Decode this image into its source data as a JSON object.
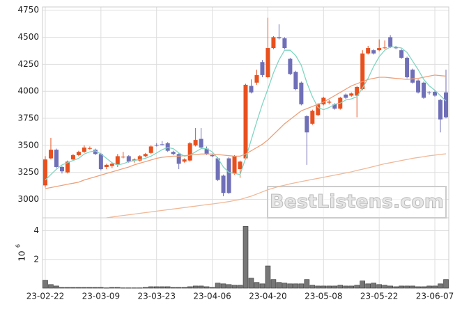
{
  "chart_data": {
    "type": "candlestick",
    "categories": [
      "23-02-22",
      null,
      null,
      null,
      null,
      null,
      null,
      null,
      null,
      null,
      "23-03-09",
      null,
      null,
      null,
      null,
      null,
      null,
      null,
      null,
      null,
      "23-03-23",
      null,
      null,
      null,
      null,
      null,
      null,
      null,
      null,
      null,
      "23-04-06",
      null,
      null,
      null,
      null,
      null,
      null,
      null,
      null,
      null,
      "23-04-20",
      null,
      null,
      null,
      null,
      null,
      null,
      null,
      null,
      null,
      "23-05-08",
      null,
      null,
      null,
      null,
      null,
      null,
      null,
      null,
      null,
      "23-05-22",
      null,
      null,
      null,
      null,
      null,
      null,
      null,
      null,
      null,
      "23-06-07",
      null,
      null
    ],
    "open": [
      3130,
      3380,
      3460,
      3300,
      3250,
      3370,
      3410,
      3440,
      3470,
      3460,
      3420,
      3300,
      3310,
      3320,
      3390,
      3400,
      3360,
      3360,
      3400,
      3430,
      3505,
      3510,
      3520,
      3440,
      3420,
      3350,
      3360,
      3500,
      3560,
      3470,
      3410,
      3380,
      3220,
      3380,
      3240,
      3280,
      3380,
      4050,
      4080,
      4270,
      4130,
      4400,
      4500,
      4490,
      4300,
      4180,
      4080,
      3770,
      3700,
      3780,
      3880,
      3895,
      3880,
      3840,
      3970,
      3960,
      3960,
      4020,
      4350,
      4380,
      4380,
      4400,
      4500,
      4405,
      4380,
      4310,
      4200,
      4100,
      4080,
      3990,
      3995,
      3920,
      3990
    ],
    "high": [
      3400,
      3570,
      3470,
      3310,
      3360,
      3420,
      3450,
      3500,
      3490,
      3470,
      3430,
      3330,
      3340,
      3420,
      3440,
      3410,
      3380,
      3410,
      3430,
      3500,
      3520,
      3540,
      3530,
      3450,
      3430,
      3380,
      3530,
      3660,
      3660,
      3490,
      3420,
      3390,
      3230,
      3390,
      3410,
      3360,
      4070,
      4110,
      4200,
      4290,
      4680,
      4510,
      4620,
      4500,
      4310,
      4190,
      4090,
      3780,
      3830,
      3890,
      3950,
      3920,
      3890,
      3950,
      3980,
      3990,
      4050,
      4380,
      4420,
      4390,
      4480,
      4470,
      4520,
      4420,
      4390,
      4320,
      4210,
      4110,
      4090,
      4000,
      4010,
      3930,
      4200
    ],
    "low": [
      3110,
      3370,
      3290,
      3240,
      3240,
      3360,
      3400,
      3430,
      3460,
      3410,
      3270,
      3280,
      3290,
      3300,
      3380,
      3340,
      3340,
      3350,
      3390,
      3420,
      3490,
      3500,
      3440,
      3410,
      3280,
      3340,
      3350,
      3490,
      3470,
      3410,
      3390,
      3170,
      3030,
      3050,
      3230,
      3200,
      3370,
      3980,
      4060,
      4130,
      4120,
      4390,
      4480,
      4390,
      4150,
      4010,
      3870,
      3320,
      3690,
      3770,
      3870,
      3880,
      3830,
      3830,
      3930,
      3950,
      3760,
      4010,
      4340,
      4340,
      4370,
      4390,
      4400,
      4390,
      4300,
      4120,
      4070,
      3980,
      3930,
      3970,
      3950,
      3620,
      3750
    ],
    "close": [
      3370,
      3460,
      3300,
      3260,
      3350,
      3410,
      3440,
      3480,
      3475,
      3420,
      3280,
      3320,
      3330,
      3400,
      3395,
      3350,
      3370,
      3400,
      3420,
      3490,
      3500,
      3505,
      3450,
      3420,
      3330,
      3370,
      3520,
      3550,
      3480,
      3420,
      3400,
      3180,
      3060,
      3060,
      3400,
      3350,
      4060,
      3990,
      4150,
      4150,
      4400,
      4500,
      4490,
      4400,
      4160,
      4020,
      3880,
      3620,
      3820,
      3880,
      3940,
      3905,
      3840,
      3940,
      3940,
      3980,
      4040,
      4350,
      4400,
      4350,
      4400,
      4405,
      4410,
      4400,
      4310,
      4130,
      4080,
      3990,
      3940,
      3985,
      3960,
      3740,
      3760
    ],
    "up_color": "#e8501e",
    "down_color": "#6f6fb8",
    "series": [
      {
        "color": "#7fd6c0",
        "values": [
          3180,
          3230,
          3280,
          3320,
          3340,
          3360,
          3380,
          3420,
          3440,
          3450,
          3420,
          3380,
          3340,
          3320,
          3330,
          3350,
          3360,
          3370,
          3380,
          3400,
          3430,
          3460,
          3480,
          3470,
          3430,
          3400,
          3410,
          3440,
          3470,
          3470,
          3440,
          3380,
          3300,
          3250,
          3240,
          3230,
          3380,
          3550,
          3720,
          3880,
          4020,
          4170,
          4290,
          4380,
          4380,
          4330,
          4240,
          4080,
          3950,
          3850,
          3830,
          3850,
          3880,
          3890,
          3920,
          3930,
          3950,
          4030,
          4120,
          4230,
          4320,
          4380,
          4410,
          4410,
          4400,
          4360,
          4280,
          4200,
          4110,
          4050,
          4010,
          3960,
          3910
        ]
      },
      {
        "color": "#eea07a",
        "values": [
          3100,
          3110,
          3120,
          3130,
          3140,
          3150,
          3160,
          3180,
          3195,
          3210,
          3225,
          3240,
          3255,
          3270,
          3285,
          3300,
          3320,
          3335,
          3350,
          3365,
          3380,
          3390,
          3395,
          3400,
          3400,
          3405,
          3410,
          3415,
          3420,
          3420,
          3420,
          3415,
          3410,
          3405,
          3400,
          3400,
          3420,
          3450,
          3480,
          3510,
          3550,
          3600,
          3650,
          3700,
          3740,
          3780,
          3820,
          3840,
          3860,
          3880,
          3900,
          3930,
          3960,
          3990,
          4020,
          4050,
          4070,
          4090,
          4110,
          4120,
          4130,
          4130,
          4125,
          4120,
          4115,
          4110,
          4115,
          4120,
          4130,
          4140,
          4150,
          4145,
          4140
        ]
      },
      {
        "color": "#f0b898",
        "values": [
          null,
          null,
          null,
          null,
          null,
          null,
          null,
          null,
          null,
          null,
          null,
          2830,
          2838,
          2845,
          2852,
          2858,
          2865,
          2872,
          2878,
          2885,
          2892,
          2898,
          2905,
          2912,
          2918,
          2925,
          2932,
          2938,
          2945,
          2952,
          2958,
          2965,
          2972,
          2980,
          2990,
          3000,
          3015,
          3030,
          3050,
          3070,
          3090,
          3105,
          3120,
          3132,
          3145,
          3155,
          3165,
          3175,
          3185,
          3195,
          3205,
          3215,
          3225,
          3235,
          3245,
          3255,
          3268,
          3280,
          3292,
          3305,
          3318,
          3330,
          3340,
          3350,
          3360,
          3370,
          3380,
          3388,
          3396,
          3404,
          3410,
          3416,
          3422
        ]
      }
    ],
    "ylim": [
      2830,
      4780
    ],
    "yticks": [
      3000,
      3250,
      3500,
      3750,
      4000,
      4250,
      4500,
      4750
    ],
    "volume": [
      0.55,
      0.25,
      0.15,
      0.05,
      0.05,
      0.05,
      0.05,
      0.05,
      0.05,
      0.05,
      0.05,
      0.02,
      0.05,
      0.05,
      0.02,
      0.02,
      0.02,
      0.02,
      0.05,
      0.1,
      0.1,
      0.1,
      0.1,
      0.05,
      0.05,
      0.05,
      0.1,
      0.15,
      0.15,
      0.1,
      0.05,
      0.35,
      0.3,
      0.25,
      0.2,
      0.2,
      4.3,
      0.7,
      0.4,
      0.3,
      1.55,
      0.6,
      0.4,
      0.35,
      0.3,
      0.3,
      0.3,
      0.6,
      0.2,
      0.15,
      0.15,
      0.15,
      0.15,
      0.2,
      0.15,
      0.15,
      0.2,
      0.5,
      0.3,
      0.35,
      0.25,
      0.2,
      0.15,
      0.1,
      0.15,
      0.15,
      0.15,
      0.1,
      0.1,
      0.15,
      0.15,
      0.3,
      0.6
    ],
    "volume_color": "#777777",
    "y2lim": [
      0,
      4.9
    ],
    "y2ticks": [
      2,
      4
    ],
    "y2label": {
      "base": "10",
      "exponent": "6"
    },
    "watermark": "BestListens.com",
    "grid": true
  }
}
